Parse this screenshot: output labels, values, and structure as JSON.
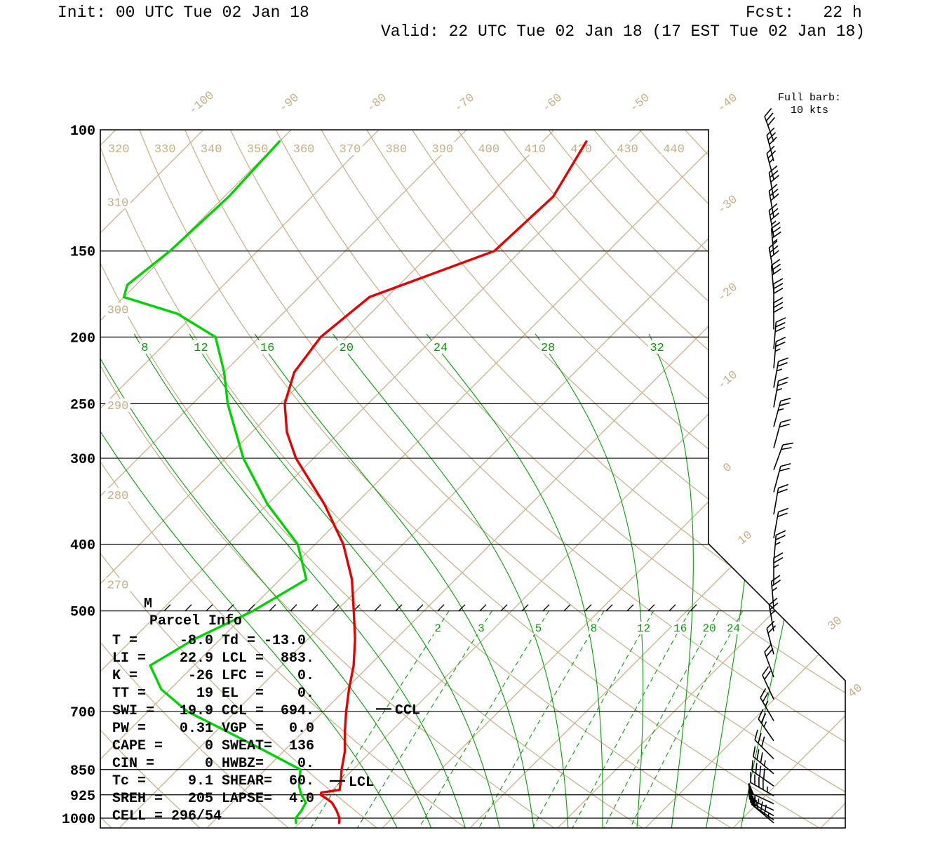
{
  "header": {
    "init": "Init: 00 UTC Tue 02 Jan 18",
    "fcst": "Fcst:   22 h",
    "valid": "Valid: 22 UTC Tue 02 Jan 18 (17 EST Tue 02 Jan 18)"
  },
  "barb_legend": {
    "line1": "Full barb:",
    "line2": "10 kts"
  },
  "parcel_info": {
    "title": "Parcel Info",
    "text": "T =     -8.0 Td = -13.0\nLI =    22.9 LCL =  883.\nK =      -26 LFC =    0.\nTT =      19 EL  =    0.\nSWI =   19.9 CCL =  694.\nPW =    0.31 VGP =   0.0\nCAPE =     0 SWEAT=  136\nCIN =      0 HWBZ=    0.\nTc =     9.1 SHEAR=  60.\nSREH =   205 LAPSE=  4.0\nCELL = 296/54"
  },
  "colors": {
    "tan": "#c8ad84",
    "green_bg": "#00a000",
    "temp_red": "#e60000",
    "dew_green": "#00d400",
    "black": "#000000"
  },
  "chart_data": {
    "type": "skewt_log_p_sounding",
    "pressure_axis_hpa": [
      100,
      150,
      200,
      250,
      300,
      400,
      500,
      700,
      850,
      925,
      1000
    ],
    "isotherm_labels_top_c": [
      -100,
      -90,
      -80,
      -70,
      -60,
      -50,
      -40
    ],
    "isotherm_labels_right_c": [
      -30,
      -20,
      -10,
      0,
      10,
      30,
      40
    ],
    "dry_adiabat_labels_top_k": [
      320,
      330,
      340,
      350,
      360,
      370,
      380,
      390,
      400,
      410,
      420,
      430,
      440
    ],
    "dry_adiabat_labels_left_k": [
      310,
      300,
      290,
      280,
      270
    ],
    "moist_adiabat_labels_c": [
      8,
      12,
      16,
      20,
      24,
      28,
      32
    ],
    "mixing_ratio_labels_gkg": [
      2,
      3,
      5,
      8,
      12,
      16,
      20,
      24
    ],
    "temperature_profile_p_t": [
      [
        1016,
        -5.5
      ],
      [
        1000,
        -6.0
      ],
      [
        975,
        -7.2
      ],
      [
        950,
        -8.6
      ],
      [
        938,
        -9.6
      ],
      [
        925,
        -10.8
      ],
      [
        918,
        -11.0
      ],
      [
        910,
        -9.2
      ],
      [
        880,
        -10.2
      ],
      [
        850,
        -11.3
      ],
      [
        800,
        -13.0
      ],
      [
        750,
        -15.2
      ],
      [
        700,
        -17.4
      ],
      [
        650,
        -19.6
      ],
      [
        600,
        -21.8
      ],
      [
        550,
        -24.6
      ],
      [
        500,
        -28.0
      ],
      [
        450,
        -31.8
      ],
      [
        400,
        -36.8
      ],
      [
        350,
        -43.5
      ],
      [
        300,
        -52.0
      ],
      [
        275,
        -56.0
      ],
      [
        250,
        -59.5
      ],
      [
        225,
        -62.0
      ],
      [
        200,
        -63.0
      ],
      [
        175,
        -62.0
      ],
      [
        150,
        -53.0
      ],
      [
        125,
        -52.5
      ],
      [
        104,
        -55.0
      ]
    ],
    "dewpoint_profile_p_td": [
      [
        1016,
        -10.4
      ],
      [
        1000,
        -11.0
      ],
      [
        975,
        -11.2
      ],
      [
        950,
        -11.6
      ],
      [
        925,
        -13.0
      ],
      [
        900,
        -14.2
      ],
      [
        850,
        -16.0
      ],
      [
        800,
        -22.0
      ],
      [
        750,
        -28.5
      ],
      [
        700,
        -35.5
      ],
      [
        650,
        -41.0
      ],
      [
        600,
        -45.0
      ],
      [
        550,
        -43.0
      ],
      [
        500,
        -39.5
      ],
      [
        450,
        -37.0
      ],
      [
        400,
        -42.0
      ],
      [
        350,
        -50.0
      ],
      [
        300,
        -58.0
      ],
      [
        250,
        -66.0
      ],
      [
        225,
        -70.0
      ],
      [
        200,
        -75.0
      ],
      [
        185,
        -82.0
      ],
      [
        175,
        -90.0
      ],
      [
        168,
        -91.0
      ],
      [
        150,
        -90.0
      ],
      [
        125,
        -89.5
      ],
      [
        104,
        -90.0
      ]
    ],
    "wind_barbs_p_dir_kt": [
      [
        104,
        340,
        30
      ],
      [
        111,
        345,
        30
      ],
      [
        118,
        345,
        25
      ],
      [
        126,
        350,
        30
      ],
      [
        134,
        350,
        30
      ],
      [
        143,
        350,
        35
      ],
      [
        152,
        355,
        35
      ],
      [
        162,
        350,
        30
      ],
      [
        172,
        355,
        30
      ],
      [
        183,
        0,
        30
      ],
      [
        195,
        0,
        30
      ],
      [
        208,
        5,
        30
      ],
      [
        222,
        5,
        25
      ],
      [
        237,
        10,
        25
      ],
      [
        253,
        10,
        25
      ],
      [
        270,
        15,
        25
      ],
      [
        290,
        15,
        20
      ],
      [
        312,
        20,
        20
      ],
      [
        336,
        15,
        20
      ],
      [
        362,
        10,
        20
      ],
      [
        392,
        10,
        20
      ],
      [
        424,
        5,
        25
      ],
      [
        458,
        0,
        25
      ],
      [
        495,
        355,
        25
      ],
      [
        535,
        350,
        25
      ],
      [
        578,
        345,
        20
      ],
      [
        624,
        340,
        20
      ],
      [
        672,
        335,
        20
      ],
      [
        722,
        330,
        25
      ],
      [
        772,
        325,
        25
      ],
      [
        820,
        315,
        30
      ],
      [
        862,
        310,
        35
      ],
      [
        898,
        305,
        40
      ],
      [
        928,
        300,
        45
      ],
      [
        953,
        295,
        50
      ],
      [
        974,
        295,
        55
      ],
      [
        992,
        300,
        55
      ],
      [
        1006,
        305,
        50
      ],
      [
        1016,
        310,
        45
      ]
    ],
    "markers": {
      "m_label": "M",
      "hatched_pressure": 500,
      "ccl": {
        "label": "CCL",
        "pressure": 694
      },
      "lcl": {
        "label": "LCL",
        "pressure": 883
      }
    }
  }
}
